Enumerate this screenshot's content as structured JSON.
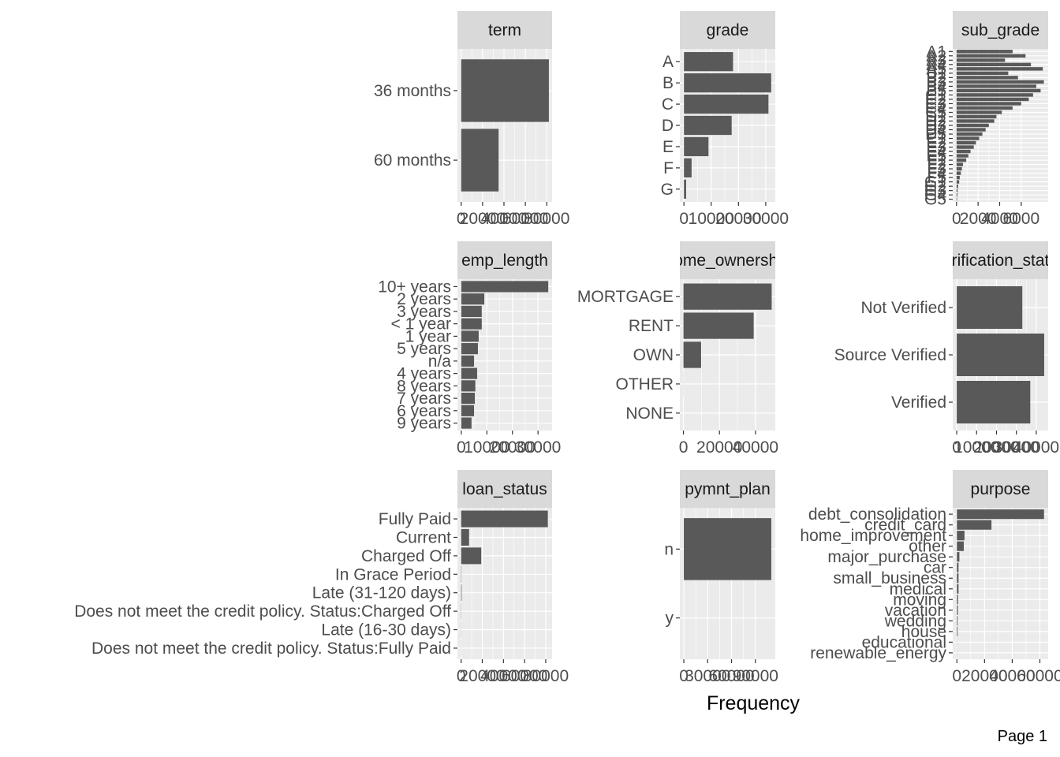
{
  "page_label": "Page 1",
  "x_axis_title": "Frequency",
  "colors": {
    "bar": "#595959",
    "panel": "#ebebeb",
    "grid": "#ffffff",
    "strip": "#d9d9d9",
    "tick": "#333333"
  },
  "chart_data": [
    {
      "type": "bar",
      "orientation": "horizontal",
      "title": "term",
      "categories": [
        "36 months",
        "60 months"
      ],
      "values": [
        82000,
        35000
      ],
      "xlim": [
        -3500,
        85000
      ],
      "xticks": [
        "0",
        "20000",
        "40000",
        "60000",
        "80000"
      ]
    },
    {
      "type": "bar",
      "orientation": "horizontal",
      "title": "grade",
      "categories": [
        "A",
        "B",
        "C",
        "D",
        "E",
        "F",
        "G"
      ],
      "values": [
        18000,
        32000,
        31000,
        17500,
        9000,
        2800,
        800
      ],
      "xlim": [
        -1500,
        33500
      ],
      "xticks": [
        "0",
        "10000",
        "20000",
        "30000"
      ]
    },
    {
      "type": "bar",
      "orientation": "horizontal",
      "title": "sub_grade",
      "categories": [
        "A1",
        "A2",
        "A3",
        "A4",
        "A5",
        "B1",
        "B2",
        "B3",
        "B4",
        "B5",
        "C1",
        "C2",
        "C3",
        "C4",
        "C5",
        "D1",
        "D2",
        "D3",
        "D4",
        "D5",
        "E1",
        "E2",
        "E3",
        "E4",
        "E5",
        "F1",
        "F2",
        "F3",
        "F4",
        "F5",
        "G1",
        "G2",
        "G3",
        "G4",
        "G5"
      ],
      "values": [
        5200,
        6400,
        4500,
        6900,
        8000,
        4800,
        5700,
        8100,
        7400,
        7800,
        7100,
        6700,
        6000,
        5200,
        4200,
        3700,
        3500,
        3000,
        2700,
        2400,
        2100,
        1800,
        1600,
        1300,
        1100,
        900,
        600,
        500,
        400,
        300,
        250,
        150,
        100,
        80,
        50
      ],
      "xlim": [
        -350,
        8500
      ],
      "xticks": [
        "0",
        "2000",
        "4000",
        "6000"
      ]
    },
    {
      "type": "bar",
      "orientation": "horizontal",
      "title": "emp_length",
      "categories": [
        "10+ years",
        "2 years",
        "3 years",
        "< 1 year",
        "1 year",
        "5 years",
        "n/a",
        "4 years",
        "8 years",
        "7 years",
        "6 years",
        "9 years"
      ],
      "values": [
        34000,
        9000,
        8000,
        8000,
        6800,
        6500,
        5000,
        6200,
        5500,
        5300,
        5000,
        4000
      ],
      "xlim": [
        -1500,
        35500
      ],
      "xticks": [
        "0",
        "10000",
        "20000",
        "30000"
      ]
    },
    {
      "type": "bar",
      "orientation": "horizontal",
      "title": "home_ownership",
      "categories": [
        "MORTGAGE",
        "RENT",
        "OWN",
        "OTHER",
        "NONE"
      ],
      "values": [
        49000,
        39000,
        9800,
        50,
        10
      ],
      "xlim": [
        -2000,
        51000
      ],
      "xticks": [
        "0",
        "20000",
        "40000"
      ]
    },
    {
      "type": "bar",
      "orientation": "horizontal",
      "title": "verification_status",
      "categories": [
        "Not Verified",
        "Source Verified",
        "Verified"
      ],
      "values": [
        33000,
        44000,
        37000
      ],
      "xlim": [
        -2000,
        46000
      ],
      "xticks": [
        "0",
        "10000",
        "20000",
        "30000",
        "40000"
      ]
    },
    {
      "type": "bar",
      "orientation": "horizontal",
      "title": "loan_status",
      "categories": [
        "Fully Paid",
        "Current",
        "Charged Off",
        "In Grace Period",
        "Late (31-120 days)",
        "Does not meet the credit policy. Status:Charged Off",
        "Late (16-30 days)",
        "Does not meet the credit policy. Status:Fully Paid"
      ],
      "values": [
        82000,
        7500,
        19000,
        300,
        500,
        200,
        150,
        100
      ],
      "xlim": [
        -3500,
        86000
      ],
      "xticks": [
        "0",
        "20000",
        "40000",
        "60000",
        "80000"
      ]
    },
    {
      "type": "bar",
      "orientation": "horizontal",
      "title": "pymnt_plan",
      "categories": [
        "n",
        "y"
      ],
      "values": [
        110000,
        20
      ],
      "xlim": [
        -5000,
        115000
      ],
      "xticks": [
        "0",
        "30000",
        "60000",
        "90000"
      ]
    },
    {
      "type": "bar",
      "orientation": "horizontal",
      "title": "purpose",
      "categories": [
        "debt_consolidation",
        "credit_card",
        "home_improvement",
        "other",
        "major_purchase",
        "car",
        "small_business",
        "medical",
        "moving",
        "vacation",
        "wedding",
        "house",
        "educational",
        "renewable_energy"
      ],
      "values": [
        63000,
        25000,
        5500,
        5000,
        1800,
        1200,
        1200,
        1200,
        800,
        700,
        500,
        500,
        100,
        100
      ],
      "xlim": [
        -3000,
        66000
      ],
      "xticks": [
        "0",
        "20000",
        "40000",
        "60000"
      ]
    }
  ]
}
